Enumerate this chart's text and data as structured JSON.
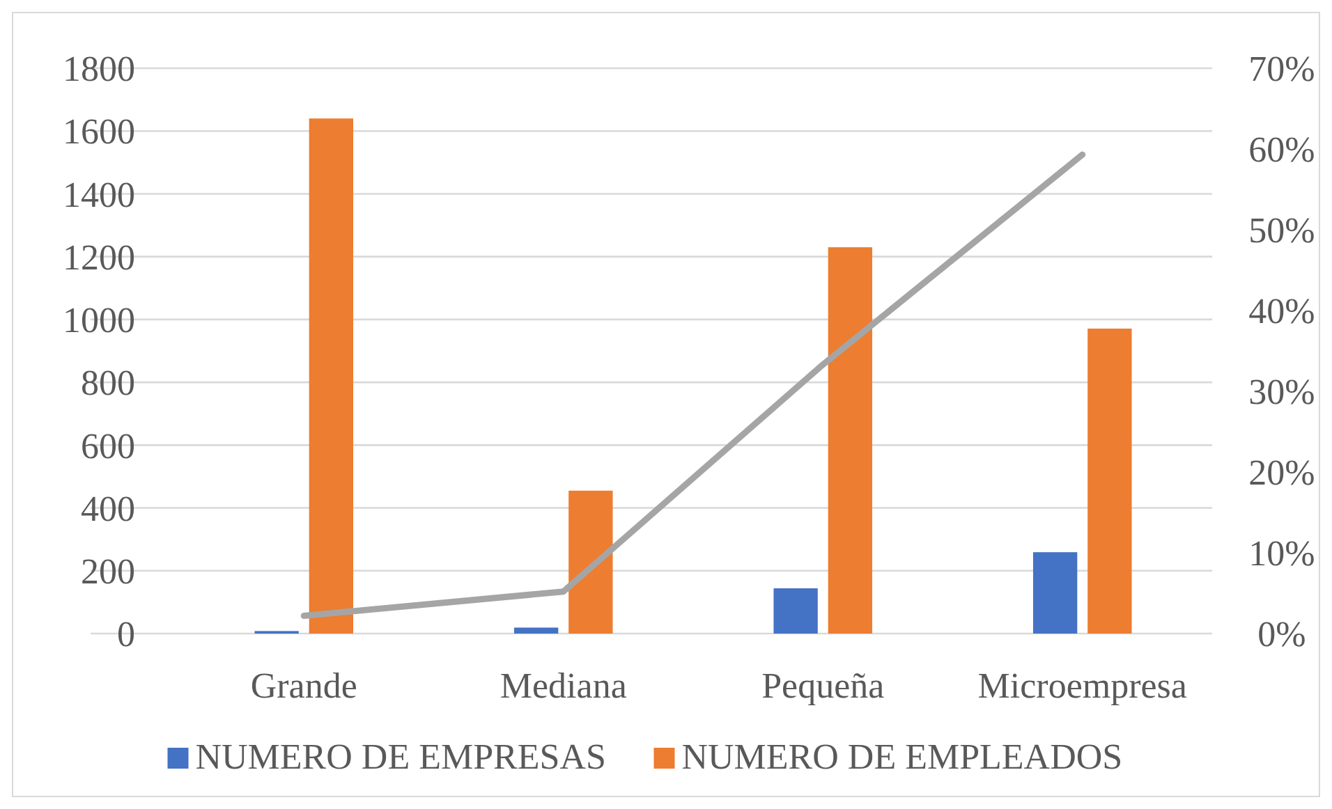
{
  "chart_data": {
    "type": "bar",
    "categories": [
      "Grande",
      "Mediana",
      "Pequeña",
      "Microempresa"
    ],
    "series": [
      {
        "name": "NUMERO DE EMPRESAS",
        "color": "#4472c4",
        "values": [
          8,
          19,
          144,
          259
        ]
      },
      {
        "name": "NUMERO DE EMPLEADOS",
        "color": "#ed7d31",
        "values": [
          1640,
          455,
          1230,
          971
        ]
      },
      {
        "type": "line",
        "axis": "y2",
        "color": "#a5a5a5",
        "values": [
          2.2,
          5.2,
          33.3,
          59.3
        ]
      }
    ],
    "ylim": [
      0,
      1800
    ],
    "yticks": [
      0,
      200,
      400,
      600,
      800,
      1000,
      1200,
      1400,
      1600,
      1800
    ],
    "y2lim": [
      0,
      70
    ],
    "y2ticks": [
      {
        "value": 0,
        "label": "0%"
      },
      {
        "value": 10,
        "label": "10%"
      },
      {
        "value": 20,
        "label": "20%"
      },
      {
        "value": 30,
        "label": "30%"
      },
      {
        "value": 40,
        "label": "40%"
      },
      {
        "value": 50,
        "label": "50%"
      },
      {
        "value": 60,
        "label": "60%"
      },
      {
        "value": 70,
        "label": "70%"
      }
    ],
    "grid": "y",
    "legend": "bottom",
    "marker": "none"
  }
}
